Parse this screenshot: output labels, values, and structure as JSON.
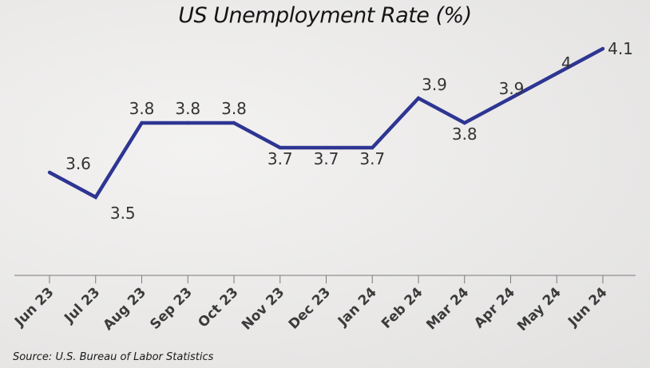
{
  "chart_data": {
    "type": "line",
    "title": "US Unemployment Rate (%)",
    "categories": [
      "Jun 23",
      "Jul 23",
      "Aug 23",
      "Sep 23",
      "Oct 23",
      "Nov 23",
      "Dec 23",
      "Jan 24",
      "Feb 24",
      "Mar 24",
      "Apr 24",
      "May 24",
      "Jun 24"
    ],
    "series": [
      {
        "values": [
          3.6,
          3.5,
          3.8,
          3.8,
          3.8,
          3.7,
          3.7,
          3.7,
          3.9,
          3.8,
          3.9,
          4.0,
          4.1
        ]
      }
    ],
    "data_labels": [
      "3.6",
      "3.5",
      "3.8",
      "3.8",
      "3.8",
      "3.7",
      "3.7",
      "3.7",
      "3.9",
      "3.8",
      "3.9",
      "4",
      "4.1"
    ],
    "xlabel": "",
    "ylabel": "",
    "grid": false,
    "legend": "none",
    "line_color": "#2e3592",
    "axis_color": "#7a7a7a"
  },
  "source": "Source: U.S. Bureau of Labor Statistics"
}
